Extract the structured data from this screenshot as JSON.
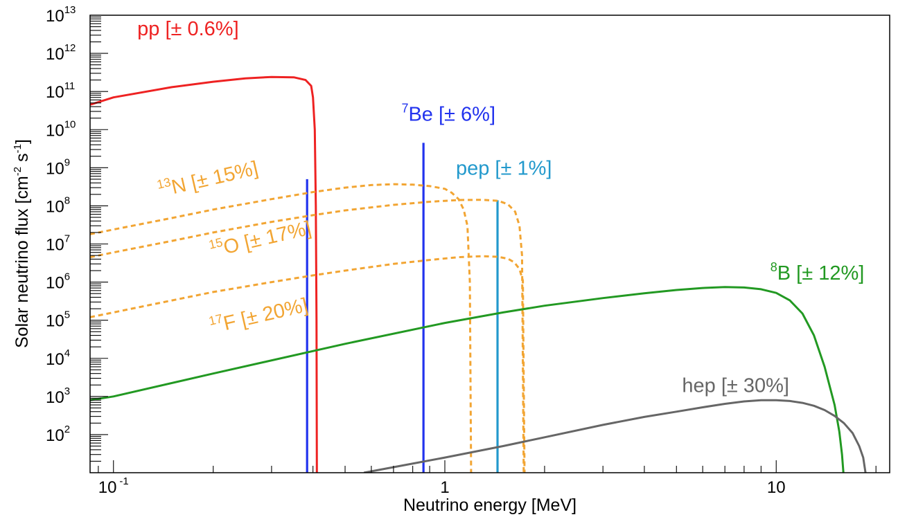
{
  "chart_data": {
    "type": "line",
    "title": "",
    "xlabel": "Neutrino energy [MeV]",
    "ylabel": "Solar neutrino flux [cm^-2 s^-1]",
    "ylabel_parts": {
      "main": "Solar neutrino flux [cm",
      "sup1": "-2",
      "mid": " s",
      "sup2": "-1",
      "end": "]"
    },
    "x_scale": "log",
    "y_scale": "log",
    "xlim": [
      0.085,
      22
    ],
    "ylim": [
      10,
      10000000000000.0
    ],
    "x_ticks": [
      {
        "value": 0.1,
        "base": "10",
        "exp": "-1"
      },
      {
        "value": 1,
        "base": "1",
        "exp": ""
      },
      {
        "value": 10,
        "base": "10",
        "exp": ""
      }
    ],
    "y_ticks": [
      {
        "value": 100,
        "base": "10",
        "exp": "2"
      },
      {
        "value": 1000,
        "base": "10",
        "exp": "3"
      },
      {
        "value": 10000,
        "base": "10",
        "exp": "4"
      },
      {
        "value": 100000,
        "base": "10",
        "exp": "5"
      },
      {
        "value": 1000000,
        "base": "10",
        "exp": "6"
      },
      {
        "value": 10000000,
        "base": "10",
        "exp": "7"
      },
      {
        "value": 100000000,
        "base": "10",
        "exp": "8"
      },
      {
        "value": 1000000000,
        "base": "10",
        "exp": "9"
      },
      {
        "value": 10000000000,
        "base": "10",
        "exp": "10"
      },
      {
        "value": 100000000000,
        "base": "10",
        "exp": "11"
      },
      {
        "value": 1000000000000,
        "base": "10",
        "exp": "12"
      },
      {
        "value": 10000000000000,
        "base": "10",
        "exp": "13"
      }
    ],
    "series": [
      {
        "name": "pp",
        "label_sup": "",
        "label_main": "pp [± 0.6%]",
        "color": "#ee2222",
        "style": "solid",
        "label_anchor": {
          "x": 0.118,
          "y": 3000000000000.0
        },
        "points": [
          [
            0.085,
            45000000000.0
          ],
          [
            0.1,
            70000000000.0
          ],
          [
            0.15,
            130000000000.0
          ],
          [
            0.2,
            180000000000.0
          ],
          [
            0.25,
            220000000000.0
          ],
          [
            0.3,
            240000000000.0
          ],
          [
            0.35,
            235000000000.0
          ],
          [
            0.38,
            200000000000.0
          ],
          [
            0.395,
            140000000000.0
          ],
          [
            0.4,
            70000000000.0
          ],
          [
            0.405,
            10000000000.0
          ],
          [
            0.408,
            100000000.0
          ],
          [
            0.41,
            100000.0
          ],
          [
            0.411,
            10
          ]
        ]
      },
      {
        "name": "7Be",
        "label_sup": "7",
        "label_main": "Be [± 6%]",
        "color": "#2233ee",
        "style": "line",
        "label_anchor": {
          "x": 0.74,
          "y": 17000000000.0
        },
        "lines": [
          {
            "energy": 0.384,
            "flux": 500000000.0
          },
          {
            "energy": 0.862,
            "flux": 4500000000.0
          }
        ]
      },
      {
        "name": "pep",
        "label_sup": "",
        "label_main": "pep [± 1%]",
        "color": "#2299cc",
        "style": "line",
        "label_anchor": {
          "x": 1.08,
          "y": 650000000.0
        },
        "lines": [
          {
            "energy": 1.442,
            "flux": 140000000.0
          }
        ]
      },
      {
        "name": "13N",
        "label_sup": "13",
        "label_main": "N [± 15%]",
        "color": "#f2a533",
        "style": "dashed",
        "label_anchor": {
          "x": 0.138,
          "y": 170000000.0
        },
        "label_angle": -13,
        "points": [
          [
            0.085,
            18000000.0
          ],
          [
            0.1,
            24000000.0
          ],
          [
            0.15,
            48000000.0
          ],
          [
            0.2,
            80000000.0
          ],
          [
            0.3,
            150000000.0
          ],
          [
            0.4,
            230000000.0
          ],
          [
            0.5,
            300000000.0
          ],
          [
            0.6,
            350000000.0
          ],
          [
            0.7,
            370000000.0
          ],
          [
            0.8,
            360000000.0
          ],
          [
            0.9,
            330000000.0
          ],
          [
            1.0,
            280000000.0
          ],
          [
            1.05,
            220000000.0
          ],
          [
            1.1,
            150000000.0
          ],
          [
            1.14,
            80000000.0
          ],
          [
            1.17,
            30000000.0
          ],
          [
            1.19,
            1000000.0
          ],
          [
            1.2,
            10
          ]
        ]
      },
      {
        "name": "15O",
        "label_sup": "15",
        "label_main": "O [± 17%]",
        "color": "#f2a533",
        "style": "dashed",
        "label_anchor": {
          "x": 0.198,
          "y": 4500000.0
        },
        "label_angle": -13,
        "points": [
          [
            0.085,
            4500000.0
          ],
          [
            0.1,
            6000000.0
          ],
          [
            0.15,
            12000000.0
          ],
          [
            0.2,
            20000000.0
          ],
          [
            0.3,
            38000000.0
          ],
          [
            0.4,
            57000000.0
          ],
          [
            0.5,
            76000000.0
          ],
          [
            0.7,
            106000000.0
          ],
          [
            0.9,
            128000000.0
          ],
          [
            1.1,
            142000000.0
          ],
          [
            1.3,
            144000000.0
          ],
          [
            1.45,
            135000000.0
          ],
          [
            1.55,
            110000000.0
          ],
          [
            1.63,
            70000000.0
          ],
          [
            1.68,
            30000000.0
          ],
          [
            1.71,
            5000000.0
          ],
          [
            1.73,
            10
          ]
        ]
      },
      {
        "name": "17F",
        "label_sup": "17",
        "label_main": "F [± 20%]",
        "color": "#f2a533",
        "style": "dashed",
        "label_anchor": {
          "x": 0.198,
          "y": 45000.0
        },
        "label_angle": -13,
        "points": [
          [
            0.085,
            120000.0
          ],
          [
            0.1,
            160000.0
          ],
          [
            0.15,
            330000.0
          ],
          [
            0.2,
            550000.0
          ],
          [
            0.3,
            1000000.0
          ],
          [
            0.4,
            1500000.0
          ],
          [
            0.5,
            2000000.0
          ],
          [
            0.7,
            3000000.0
          ],
          [
            0.9,
            3800000.0
          ],
          [
            1.1,
            4500000.0
          ],
          [
            1.3,
            4800000.0
          ],
          [
            1.45,
            4600000.0
          ],
          [
            1.55,
            4100000.0
          ],
          [
            1.62,
            3300000.0
          ],
          [
            1.68,
            2200000.0
          ],
          [
            1.72,
            1100000.0
          ],
          [
            1.74,
            10
          ]
        ]
      },
      {
        "name": "8B",
        "label_sup": "8",
        "label_main": "B [± 12%]",
        "color": "#229922",
        "style": "solid",
        "label_anchor": {
          "x": 9.6,
          "y": 1150000.0
        },
        "points": [
          [
            0.085,
            800.0
          ],
          [
            0.1,
            1000.0
          ],
          [
            0.2,
            4000.0
          ],
          [
            0.5,
            24000.0
          ],
          [
            1,
            85000.0
          ],
          [
            1.5,
            160000.0
          ],
          [
            2,
            240000.0
          ],
          [
            3,
            380000.0
          ],
          [
            4,
            510000.0
          ],
          [
            5,
            620000.0
          ],
          [
            6,
            700000.0
          ],
          [
            7,
            740000.0
          ],
          [
            8,
            720000.0
          ],
          [
            9,
            650000.0
          ],
          [
            10,
            520000.0
          ],
          [
            11,
            330000.0
          ],
          [
            12,
            150000.0
          ],
          [
            13,
            40000.0
          ],
          [
            14,
            6000.0
          ],
          [
            15,
            600.0
          ],
          [
            15.5,
            120.0
          ],
          [
            15.8,
            30
          ],
          [
            15.95,
            10
          ]
        ]
      },
      {
        "name": "hep",
        "label_sup": "",
        "label_main": "hep [± 30%]",
        "color": "#666666",
        "style": "solid",
        "label_anchor": {
          "x": 5.2,
          "y": 1300.0
        },
        "points": [
          [
            0.57,
            10
          ],
          [
            0.7,
            14
          ],
          [
            1,
            25
          ],
          [
            1.5,
            50
          ],
          [
            2,
            85
          ],
          [
            3,
            180
          ],
          [
            4,
            290
          ],
          [
            5,
            400
          ],
          [
            6,
            520
          ],
          [
            7,
            640
          ],
          [
            8,
            740
          ],
          [
            9,
            800
          ],
          [
            10,
            800
          ],
          [
            11,
            760
          ],
          [
            12,
            680
          ],
          [
            13,
            570
          ],
          [
            14,
            440
          ],
          [
            15,
            310
          ],
          [
            16,
            200
          ],
          [
            17,
            110
          ],
          [
            17.8,
            50
          ],
          [
            18.3,
            25
          ],
          [
            18.6,
            10
          ]
        ]
      }
    ]
  }
}
